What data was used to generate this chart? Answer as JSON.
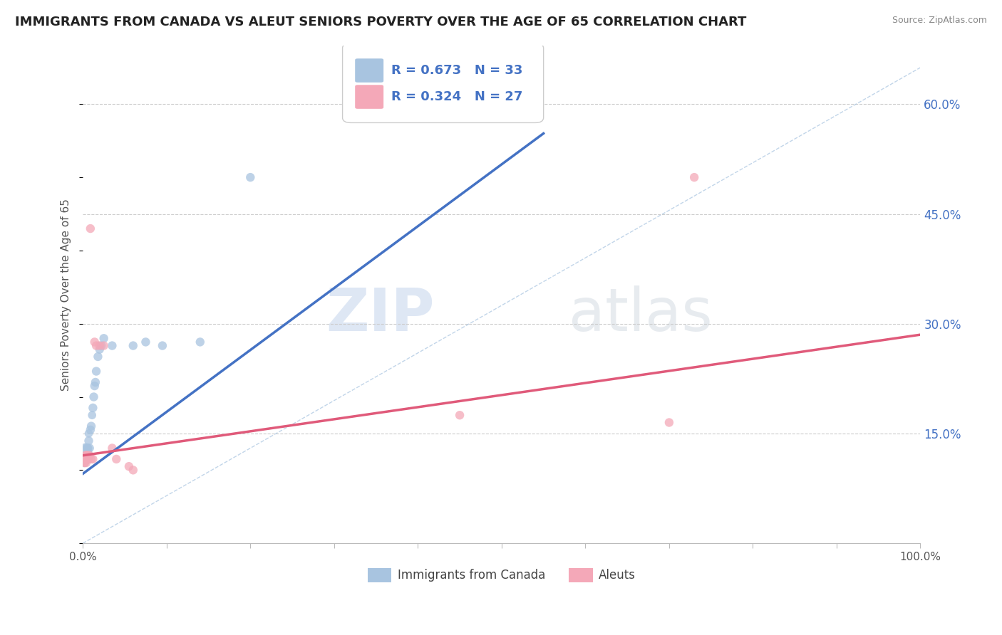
{
  "title": "IMMIGRANTS FROM CANADA VS ALEUT SENIORS POVERTY OVER THE AGE OF 65 CORRELATION CHART",
  "source": "Source: ZipAtlas.com",
  "ylabel": "Seniors Poverty Over the Age of 65",
  "xlim": [
    0,
    1.0
  ],
  "ylim": [
    0.0,
    0.68
  ],
  "x_ticks": [
    0.0,
    0.1,
    0.2,
    0.3,
    0.4,
    0.5,
    0.6,
    0.7,
    0.8,
    0.9,
    1.0
  ],
  "x_tick_labels": [
    "0.0%",
    "",
    "",
    "",
    "",
    "",
    "",
    "",
    "",
    "",
    "100.0%"
  ],
  "y_ticks": [
    0.0,
    0.15,
    0.3,
    0.45,
    0.6
  ],
  "y_tick_labels": [
    "",
    "15.0%",
    "30.0%",
    "45.0%",
    "60.0%"
  ],
  "blue_color": "#a8c4e0",
  "pink_color": "#f4a8b8",
  "blue_line_color": "#4472c4",
  "pink_line_color": "#e05a7a",
  "ref_line_color": "#a8c4e0",
  "legend_r_blue": "R = 0.673",
  "legend_n_blue": "N = 33",
  "legend_r_pink": "R = 0.324",
  "legend_n_pink": "N = 27",
  "legend_label_blue": "Immigrants from Canada",
  "legend_label_pink": "Aleuts",
  "watermark_zip": "ZIP",
  "watermark_atlas": "atlas",
  "blue_line_x0": 0.0,
  "blue_line_y0": 0.095,
  "blue_line_x1": 0.55,
  "blue_line_y1": 0.56,
  "pink_line_x0": 0.0,
  "pink_line_y0": 0.12,
  "pink_line_x1": 1.0,
  "pink_line_y1": 0.285,
  "blue_x": [
    0.001,
    0.002,
    0.002,
    0.003,
    0.003,
    0.004,
    0.004,
    0.005,
    0.005,
    0.005,
    0.006,
    0.006,
    0.007,
    0.007,
    0.008,
    0.009,
    0.01,
    0.011,
    0.012,
    0.013,
    0.014,
    0.015,
    0.016,
    0.018,
    0.02,
    0.022,
    0.025,
    0.035,
    0.06,
    0.075,
    0.095,
    0.14,
    0.2
  ],
  "blue_y": [
    0.115,
    0.11,
    0.115,
    0.13,
    0.12,
    0.115,
    0.12,
    0.13,
    0.115,
    0.12,
    0.13,
    0.125,
    0.14,
    0.15,
    0.13,
    0.155,
    0.16,
    0.175,
    0.185,
    0.2,
    0.215,
    0.22,
    0.235,
    0.255,
    0.265,
    0.27,
    0.28,
    0.27,
    0.27,
    0.275,
    0.27,
    0.275,
    0.5
  ],
  "blue_sizes": [
    200,
    80,
    70,
    100,
    80,
    80,
    70,
    90,
    80,
    70,
    80,
    70,
    80,
    70,
    80,
    80,
    80,
    70,
    80,
    80,
    80,
    80,
    80,
    80,
    80,
    80,
    80,
    80,
    80,
    80,
    80,
    80,
    80
  ],
  "pink_x": [
    0.001,
    0.002,
    0.002,
    0.003,
    0.003,
    0.004,
    0.004,
    0.005,
    0.005,
    0.006,
    0.006,
    0.007,
    0.008,
    0.009,
    0.01,
    0.012,
    0.014,
    0.016,
    0.02,
    0.025,
    0.035,
    0.04,
    0.055,
    0.06,
    0.45,
    0.7,
    0.73
  ],
  "pink_y": [
    0.115,
    0.11,
    0.115,
    0.12,
    0.115,
    0.11,
    0.12,
    0.115,
    0.12,
    0.115,
    0.12,
    0.115,
    0.12,
    0.43,
    0.115,
    0.115,
    0.275,
    0.27,
    0.27,
    0.27,
    0.13,
    0.115,
    0.105,
    0.1,
    0.175,
    0.165,
    0.5
  ],
  "pink_sizes": [
    200,
    80,
    90,
    80,
    80,
    80,
    80,
    80,
    80,
    80,
    80,
    80,
    80,
    80,
    80,
    80,
    80,
    80,
    80,
    80,
    80,
    80,
    80,
    80,
    80,
    80,
    80
  ]
}
